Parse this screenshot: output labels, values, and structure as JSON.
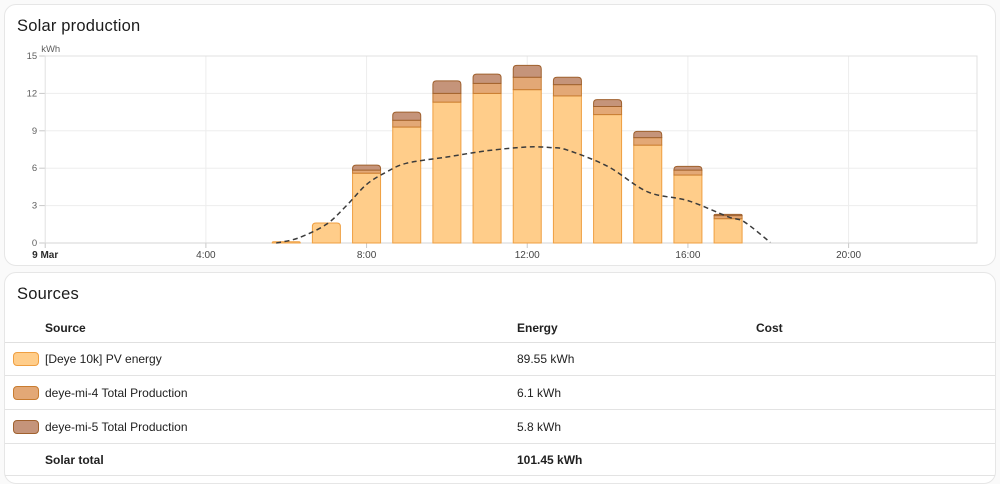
{
  "solar_card": {
    "title": "Solar production"
  },
  "chart_data": {
    "type": "bar",
    "stacked": true,
    "title": "Solar production",
    "unit": "kWh",
    "ylabel": "kWh",
    "ylim": [
      0,
      15
    ],
    "yticks": [
      0,
      3,
      6,
      9,
      12,
      15
    ],
    "xticks": [
      {
        "label": "9 Mar",
        "hour": 0,
        "bold": true
      },
      {
        "label": "4:00",
        "hour": 4
      },
      {
        "label": "8:00",
        "hour": 8
      },
      {
        "label": "12:00",
        "hour": 12
      },
      {
        "label": "16:00",
        "hour": 16
      },
      {
        "label": "20:00",
        "hour": 20
      }
    ],
    "grid": true,
    "legend_position": "none",
    "hours": [
      6,
      7,
      8,
      9,
      10,
      11,
      12,
      13,
      14,
      15,
      16,
      17
    ],
    "series": [
      {
        "name": "[Deye 10k] PV energy",
        "total": 89.55,
        "color": "#ffcd8a",
        "border": "#ef9f41",
        "values": [
          0.1,
          1.6,
          5.6,
          9.3,
          11.3,
          12.0,
          12.3,
          11.8,
          10.3,
          7.85,
          5.45,
          1.95
        ]
      },
      {
        "name": "deye-mi-4 Total Production",
        "total": 6.1,
        "color": "#e3a876",
        "border": "#c87c30",
        "values": [
          0,
          0,
          0.25,
          0.55,
          0.7,
          0.8,
          1.0,
          0.9,
          0.65,
          0.6,
          0.4,
          0.25
        ]
      },
      {
        "name": "deye-mi-5 Total Production",
        "total": 5.8,
        "color": "#c5947a",
        "border": "#a0612e",
        "values": [
          0,
          0,
          0.4,
          0.65,
          1.0,
          0.75,
          0.95,
          0.6,
          0.55,
          0.5,
          0.3,
          0.1
        ]
      }
    ],
    "forecast": {
      "name": "Solar forecast",
      "style": "dashed",
      "color": "#3b3b3b",
      "points": [
        [
          5.75,
          0
        ],
        [
          6.3,
          0.4
        ],
        [
          7,
          1.5
        ],
        [
          7.5,
          3.0
        ],
        [
          8,
          4.7
        ],
        [
          8.5,
          5.7
        ],
        [
          9,
          6.4
        ],
        [
          10,
          6.9
        ],
        [
          11,
          7.4
        ],
        [
          12,
          7.7
        ],
        [
          12.6,
          7.65
        ],
        [
          13,
          7.45
        ],
        [
          14,
          6.15
        ],
        [
          15,
          4.1
        ],
        [
          16,
          3.4
        ],
        [
          17,
          2.1
        ],
        [
          17.4,
          1.7
        ],
        [
          18.05,
          0.05
        ]
      ]
    }
  },
  "sources_card": {
    "title": "Sources",
    "columns": [
      "Source",
      "Energy",
      "Cost"
    ],
    "rows": [
      {
        "source": "[Deye 10k] PV energy",
        "energy": "89.55 kWh",
        "cost": "",
        "color": "#ffcd8a",
        "border": "#ef9f41"
      },
      {
        "source": "deye-mi-4 Total Production",
        "energy": "6.1 kWh",
        "cost": "",
        "color": "#e3a876",
        "border": "#c87c30"
      },
      {
        "source": "deye-mi-5 Total Production",
        "energy": "5.8 kWh",
        "cost": "",
        "color": "#c5947a",
        "border": "#a0612e"
      }
    ],
    "total": {
      "source": "Solar total",
      "energy": "101.45 kWh",
      "cost": ""
    }
  }
}
